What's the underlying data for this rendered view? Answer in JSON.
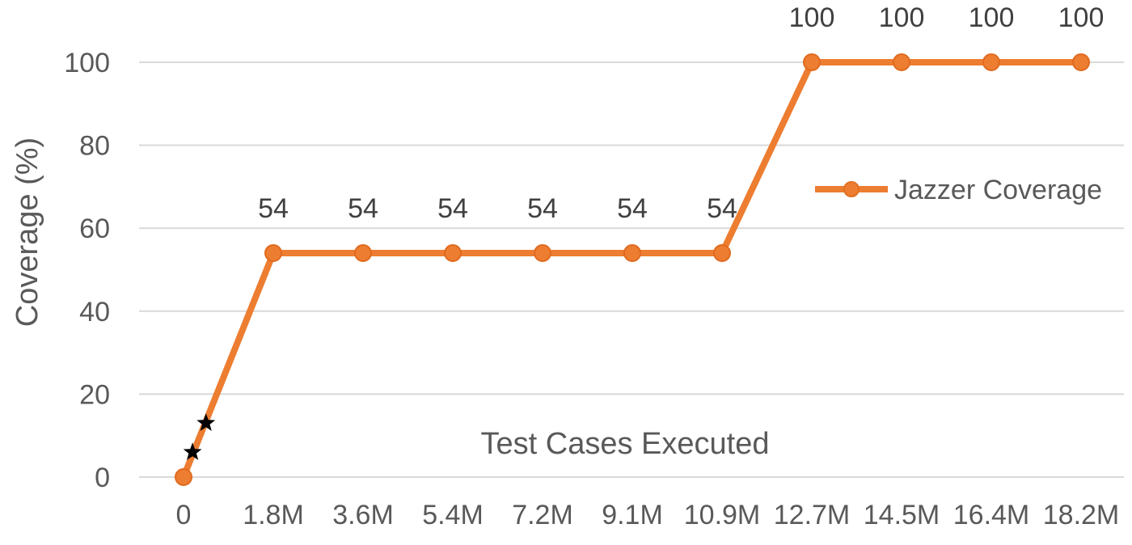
{
  "chart_data": {
    "type": "line",
    "title": "",
    "xlabel": "",
    "ylabel": "Coverage (%)",
    "categories": [
      "0",
      "1.8M",
      "3.6M",
      "5.4M",
      "7.2M",
      "9.1M",
      "10.9M",
      "12.7M",
      "14.5M",
      "16.4M",
      "18.2M"
    ],
    "series": [
      {
        "name": "Jazzer Coverage",
        "color": "#ED7D31",
        "values": [
          0,
          54,
          54,
          54,
          54,
          54,
          54,
          100,
          100,
          100,
          100
        ],
        "data_labels": [
          "",
          "54",
          "54",
          "54",
          "54",
          "54",
          "54",
          "100",
          "100",
          "100",
          "100"
        ]
      }
    ],
    "star_markers": [
      {
        "x": 0.1,
        "y": 6
      },
      {
        "x": 0.25,
        "y": 13
      }
    ],
    "ylim": [
      0,
      100
    ],
    "yticks": [
      "0",
      "20",
      "40",
      "60",
      "80",
      "100"
    ],
    "grid": true,
    "legend_position": "right",
    "annotation": "Test Cases Executed"
  }
}
